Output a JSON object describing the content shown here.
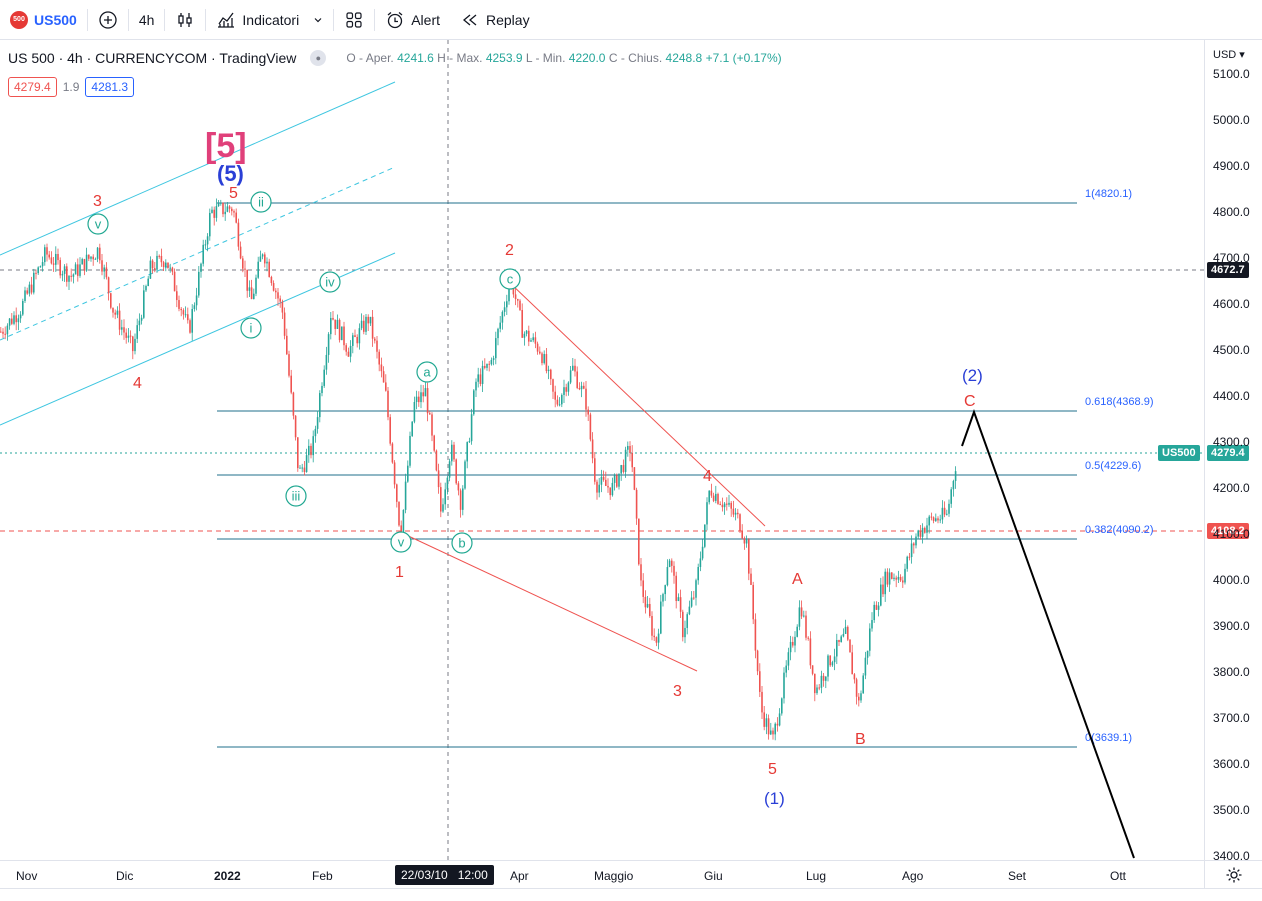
{
  "toolbar": {
    "symbol_badge": "500",
    "symbol": "US500",
    "interval": "4h",
    "indicators_label": "Indicatori",
    "alert_label": "Alert",
    "replay_label": "Replay"
  },
  "legend": {
    "title": "US 500 · 4h · CURRENCYCOM · TradingView",
    "open_label": "O - Aper.",
    "open": "4241.6",
    "high_label": "H - Max.",
    "high": "4253.9",
    "low_label": "L - Min.",
    "low": "4220.0",
    "close_label": "C - Chius.",
    "close": "4248.8",
    "change": "+7.1 (+0.17%)",
    "sell": "4279.4",
    "spread": "1.9",
    "buy": "4281.3"
  },
  "price_axis": {
    "currency": "USD",
    "ticks": [
      "5100.0",
      "5000.0",
      "4900.0",
      "4800.0",
      "4700.0",
      "4600.0",
      "4500.0",
      "4400.0",
      "4300.0",
      "4200.0",
      "4100.0",
      "4000.0",
      "3900.0",
      "3800.0",
      "3700.0",
      "3600.0",
      "3500.0",
      "3400.0"
    ],
    "crosshair_price": "4672.7",
    "symbol_tag": "US500",
    "last_price": "4279.4",
    "red_line_price": "4108.2"
  },
  "time_axis": {
    "labels": [
      "Nov",
      "Dic",
      "2022",
      "Feb",
      "Apr",
      "Maggio",
      "Giu",
      "Lug",
      "Ago",
      "Set",
      "Ott"
    ],
    "cursor_date": "22/03/10",
    "cursor_time": "12:00"
  },
  "fib": {
    "levels": [
      "1(4820.1)",
      "0.618(4368.9)",
      "0.5(4229.6)",
      "0.382(4090.2)",
      "0(3639.1)"
    ]
  },
  "waves": {
    "big5": "[5]",
    "p5": "(5)",
    "p1": "(1)",
    "p2": "(2)",
    "r3": "3",
    "r4": "4",
    "r5": "5",
    "r1": "1",
    "r2": "2",
    "r3b": "3",
    "r4b": "4",
    "r5b": "5",
    "rA": "A",
    "rB": "B",
    "rC": "C",
    "gi": "i",
    "gii": "ii",
    "giii": "iii",
    "giv": "iv",
    "gv": "v",
    "gv2": "v",
    "ga": "a",
    "gb": "b",
    "gc": "c"
  },
  "colors": {
    "up": "#26a69a",
    "down": "#ef5350",
    "fib": "#1f6f8b",
    "channel": "#3ec6e0",
    "wave_red": "#e53935",
    "wave_blue": "#2a3fd6",
    "wave_pink": "#e0407a",
    "wave_teal": "#22a892",
    "accent": "#2962ff"
  }
}
